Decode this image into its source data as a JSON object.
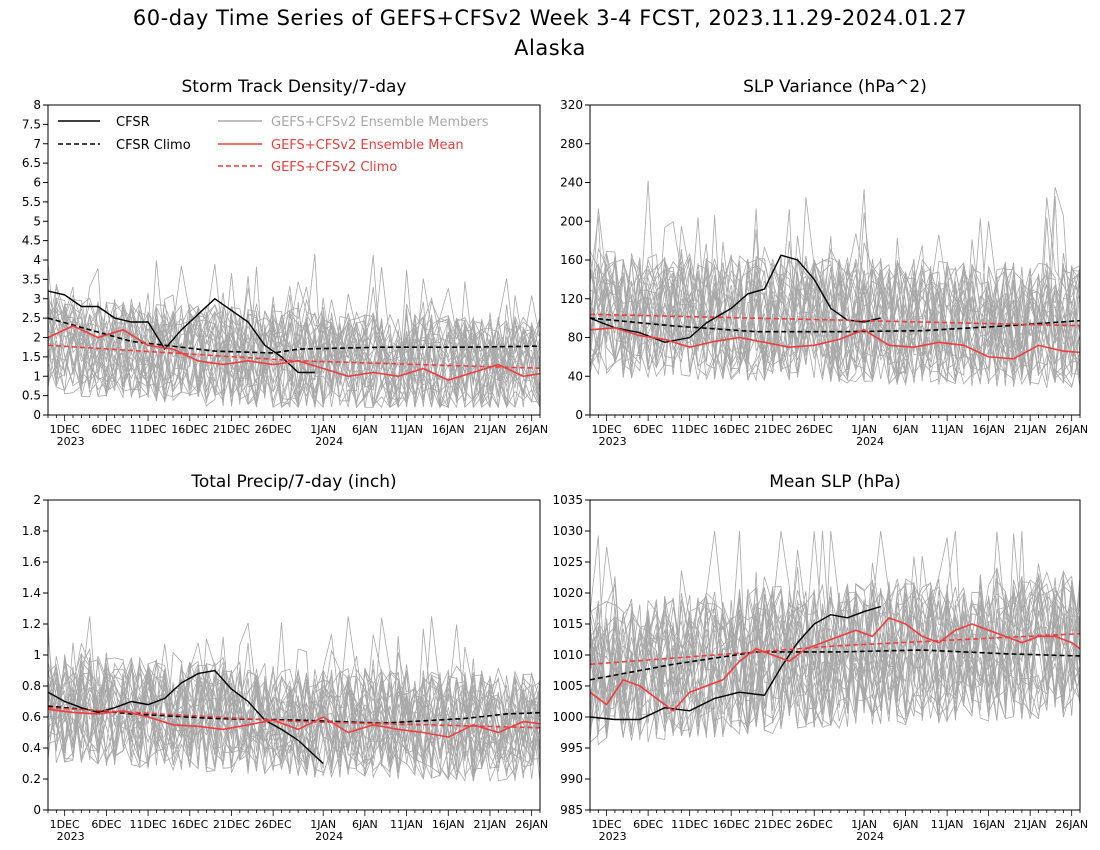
{
  "figure": {
    "title_line1": "60-day Time Series of GEFS+CFSv2 Week 3-4 FCST, 2023.11.29-2024.01.27",
    "title_line2": "Alaska"
  },
  "colors": {
    "cfsr": "#000000",
    "members": "#a8a8a8",
    "ens_mean": "#f03c3c",
    "gefs_climo": "#f03c3c"
  },
  "legend": {
    "cfsr": "CFSR",
    "cfsr_climo": "CFSR Climo",
    "members": "GEFS+CFSv2 Ensemble Members",
    "ens_mean": "GEFS+CFSv2 Ensemble Mean",
    "gefs_climo": "GEFS+CFSv2 Climo"
  },
  "x_axis": {
    "ticks": [
      {
        "label": "1DEC",
        "year": "2023"
      },
      {
        "label": "6DEC",
        "year": ""
      },
      {
        "label": "11DEC",
        "year": ""
      },
      {
        "label": "16DEC",
        "year": ""
      },
      {
        "label": "21DEC",
        "year": ""
      },
      {
        "label": "26DEC",
        "year": ""
      },
      {
        "label": "1JAN",
        "year": "2024"
      },
      {
        "label": "6JAN",
        "year": ""
      },
      {
        "label": "11JAN",
        "year": ""
      },
      {
        "label": "16JAN",
        "year": ""
      },
      {
        "label": "21JAN",
        "year": ""
      },
      {
        "label": "26JAN",
        "year": ""
      }
    ]
  },
  "chart_data": [
    {
      "type": "line",
      "title": "Storm Track Density/7-day",
      "ylim": [
        0,
        8
      ],
      "yticks": [
        "0",
        "0.5",
        "1",
        "1.5",
        "2",
        "2.5",
        "3",
        "3.5",
        "4",
        "4.5",
        "5",
        "5.5",
        "6",
        "6.5",
        "7",
        "7.5",
        "8"
      ],
      "member_range": [
        0.2,
        4.6
      ],
      "legend_placement": "top",
      "series": [
        {
          "name": "CFSR",
          "x": [
            0,
            2,
            4,
            6,
            8,
            10,
            12,
            14,
            16,
            18,
            20,
            22,
            24,
            26,
            28,
            30,
            32,
            34,
            36
          ],
          "y": [
            3.2,
            3.1,
            2.8,
            2.8,
            2.5,
            2.4,
            2.4,
            1.7,
            2.2,
            2.6,
            3.0,
            2.7,
            2.4,
            1.8,
            1.5,
            1.1,
            1.1,
            null,
            null
          ]
        },
        {
          "name": "CFSR Climo",
          "x": [
            0,
            10,
            20,
            27,
            30,
            40,
            50,
            60
          ],
          "y": [
            2.5,
            1.9,
            1.65,
            1.6,
            1.7,
            1.75,
            1.75,
            1.78
          ]
        },
        {
          "name": "GEFS+CFSv2 Ensemble Mean",
          "x": [
            0,
            3,
            6,
            9,
            12,
            15,
            18,
            21,
            24,
            27,
            30,
            33,
            36,
            39,
            42,
            45,
            48,
            51,
            54,
            57,
            60
          ],
          "y": [
            2.0,
            2.3,
            2.0,
            2.2,
            1.8,
            1.7,
            1.4,
            1.3,
            1.4,
            1.3,
            1.4,
            1.2,
            1.0,
            1.1,
            1.0,
            1.2,
            0.9,
            1.1,
            1.3,
            1.0,
            1.1
          ]
        },
        {
          "name": "GEFS+CFSv2 Climo",
          "x": [
            0,
            30,
            60
          ],
          "y": [
            1.8,
            1.4,
            1.2
          ]
        }
      ]
    },
    {
      "type": "line",
      "title": "SLP Variance (hPa^2)",
      "ylim": [
        0,
        320
      ],
      "yticks": [
        "0",
        "40",
        "80",
        "120",
        "160",
        "200",
        "240",
        "280",
        "320"
      ],
      "member_range": [
        25,
        245
      ],
      "series": [
        {
          "name": "CFSR",
          "x": [
            0,
            3,
            6,
            9,
            12,
            14,
            17,
            19,
            21,
            23,
            25,
            27,
            29,
            31,
            33,
            35,
            36
          ],
          "y": [
            100,
            90,
            85,
            75,
            80,
            95,
            110,
            125,
            130,
            165,
            160,
            140,
            110,
            98,
            96,
            100,
            null
          ]
        },
        {
          "name": "CFSR Climo",
          "x": [
            0,
            10,
            20,
            30,
            40,
            50,
            60
          ],
          "y": [
            100,
            92,
            86,
            86,
            87,
            92,
            98
          ]
        },
        {
          "name": "GEFS+CFSv2 Ensemble Mean",
          "x": [
            0,
            3,
            6,
            9,
            12,
            15,
            18,
            21,
            24,
            27,
            30,
            33,
            36,
            39,
            42,
            45,
            48,
            51,
            54,
            57,
            60
          ],
          "y": [
            88,
            90,
            82,
            78,
            70,
            76,
            80,
            75,
            70,
            72,
            78,
            88,
            72,
            70,
            75,
            72,
            60,
            58,
            72,
            66,
            64
          ]
        },
        {
          "name": "GEFS+CFSv2 Climo",
          "x": [
            0,
            30,
            60
          ],
          "y": [
            104,
            98,
            92
          ]
        }
      ]
    },
    {
      "type": "line",
      "title": "Total Precip/7-day (inch)",
      "ylim": [
        0,
        2
      ],
      "yticks": [
        "0",
        "0.2",
        "0.4",
        "0.6",
        "0.8",
        "1",
        "1.2",
        "1.4",
        "1.6",
        "1.8",
        "2"
      ],
      "member_range": [
        0.05,
        1.25
      ],
      "series": [
        {
          "name": "CFSR",
          "x": [
            0,
            2,
            4,
            6,
            8,
            10,
            12,
            14,
            16,
            18,
            20,
            22,
            24,
            26,
            28,
            30,
            32,
            33
          ],
          "y": [
            0.76,
            0.7,
            0.66,
            0.63,
            0.66,
            0.7,
            0.68,
            0.72,
            0.82,
            0.88,
            0.9,
            0.78,
            0.7,
            0.58,
            0.52,
            0.45,
            0.35,
            0.3
          ]
        },
        {
          "name": "CFSR Climo",
          "x": [
            0,
            10,
            20,
            30,
            40,
            50,
            55,
            60
          ],
          "y": [
            0.67,
            0.62,
            0.59,
            0.58,
            0.56,
            0.59,
            0.62,
            0.63
          ]
        },
        {
          "name": "GEFS+CFSv2 Ensemble Mean",
          "x": [
            0,
            3,
            6,
            9,
            12,
            15,
            18,
            21,
            24,
            27,
            30,
            33,
            36,
            39,
            42,
            45,
            48,
            51,
            54,
            57,
            60
          ],
          "y": [
            0.65,
            0.63,
            0.62,
            0.64,
            0.6,
            0.55,
            0.54,
            0.52,
            0.55,
            0.58,
            0.52,
            0.6,
            0.5,
            0.55,
            0.52,
            0.5,
            0.47,
            0.55,
            0.5,
            0.57,
            0.55
          ]
        },
        {
          "name": "GEFS+CFSv2 Climo",
          "x": [
            0,
            30,
            60
          ],
          "y": [
            0.66,
            0.57,
            0.53
          ]
        }
      ]
    },
    {
      "type": "line",
      "title": "Mean SLP (hPa)",
      "ylim": [
        985,
        1035
      ],
      "yticks": [
        "985",
        "990",
        "995",
        "1000",
        "1005",
        "1010",
        "1015",
        "1020",
        "1025",
        "1030",
        "1035"
      ],
      "member_range": [
        990,
        1030
      ],
      "series": [
        {
          "name": "CFSR",
          "x": [
            0,
            3,
            6,
            9,
            12,
            15,
            18,
            21,
            23,
            25,
            27,
            29,
            31,
            33,
            35,
            36
          ],
          "y": [
            1000,
            999.6,
            999.6,
            1001.5,
            1001,
            1003,
            1004,
            1003.5,
            1008,
            1012,
            1015,
            1016.5,
            1016,
            1017,
            1017.8,
            null
          ]
        },
        {
          "name": "CFSR Climo",
          "x": [
            0,
            10,
            20,
            30,
            40,
            50,
            60
          ],
          "y": [
            1006,
            1008.5,
            1010.5,
            1010.5,
            1010.8,
            1010.2,
            1009.8
          ]
        },
        {
          "name": "GEFS+CFSv2 Ensemble Mean",
          "x": [
            0,
            2,
            4,
            6,
            8,
            10,
            12,
            14,
            16,
            18,
            20,
            22,
            24,
            26,
            28,
            30,
            32,
            34,
            36,
            38,
            40,
            42,
            44,
            46,
            48,
            50,
            52,
            54,
            56,
            58,
            60
          ],
          "y": [
            1004,
            1002,
            1006,
            1005,
            1003,
            1001,
            1004,
            1005,
            1006,
            1009,
            1011,
            1010,
            1009,
            1011,
            1012,
            1013,
            1014,
            1013,
            1016,
            1015,
            1013,
            1012,
            1014,
            1015,
            1014,
            1013,
            1012,
            1013,
            1013,
            1012,
            1010
          ]
        },
        {
          "name": "GEFS+CFSv2 Climo",
          "x": [
            0,
            30,
            60
          ],
          "y": [
            1008.5,
            1011.5,
            1013.5
          ]
        }
      ]
    }
  ]
}
